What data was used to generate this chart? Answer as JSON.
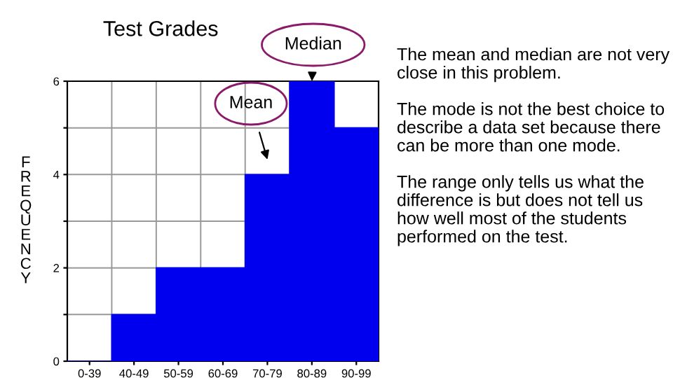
{
  "chart_data": {
    "type": "bar",
    "title": "Test Grades",
    "ylabel": "FREQUENCY",
    "categories": [
      "0-39",
      "40-49",
      "50-59",
      "60-69",
      "70-79",
      "80-89",
      "90-99"
    ],
    "values": [
      0,
      1,
      2,
      2,
      4,
      6,
      5
    ],
    "color": "#0000ee",
    "ylim": [
      0,
      6
    ],
    "yticks": [
      0,
      {
        "value": 1,
        "label": null
      },
      2,
      {
        "value": 3,
        "label": null
      },
      4,
      {
        "value": 5,
        "label": null
      },
      6
    ],
    "grid": true,
    "annotations": [
      "Mean",
      "Median",
      "The mean and median are not very close in this problem.",
      "The mode is not the best choice to describe a data set because there can be more than one mode.",
      "The range only tells us what the difference is but does not tell us how well most of the students performed on the test."
    ]
  }
}
